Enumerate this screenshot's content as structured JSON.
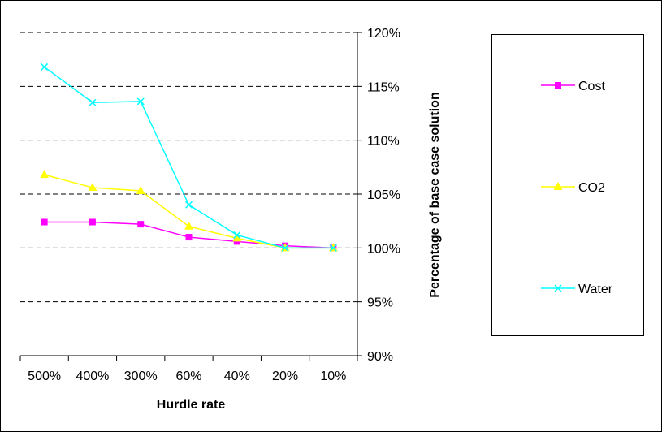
{
  "chart_data": {
    "type": "line",
    "title": "",
    "xlabel": "Hurdle rate",
    "ylabel": "Percentage of base case solution",
    "categories": [
      "500%",
      "400%",
      "300%",
      "60%",
      "40%",
      "20%",
      "10%"
    ],
    "y_ticks": [
      "90%",
      "95%",
      "100%",
      "105%",
      "110%",
      "115%",
      "120%"
    ],
    "ylim": [
      90,
      120
    ],
    "y_axis_side": "right",
    "grid": "horizontal dashed",
    "legend_position": "right",
    "series": [
      {
        "name": "Cost",
        "color": "#ff00ff",
        "marker": "square",
        "values": [
          102.4,
          102.4,
          102.2,
          101.0,
          100.6,
          100.2,
          100.0
        ]
      },
      {
        "name": "CO2",
        "color": "#ffff00",
        "marker": "triangle",
        "values": [
          106.8,
          105.6,
          105.3,
          102.0,
          100.9,
          100.0,
          100.0
        ]
      },
      {
        "name": "Water",
        "color": "#00ffff",
        "marker": "x",
        "values": [
          116.8,
          113.5,
          113.6,
          104.0,
          101.2,
          100.0,
          100.0
        ]
      }
    ]
  }
}
